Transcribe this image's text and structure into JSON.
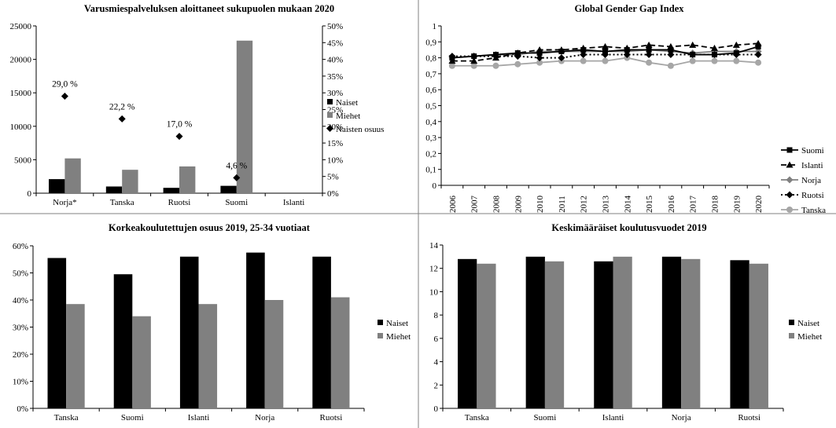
{
  "colors": {
    "naiset": "#000000",
    "miehet": "#808080",
    "norja": "#808080",
    "tanska": "#a6a6a6"
  },
  "chart_data": [
    {
      "type": "bar",
      "title": "Varusmiespalveluksen  aloittaneet sukupuolen mukaan 2020",
      "categories": [
        "Norja*",
        "Tanska",
        "Ruotsi",
        "Suomi",
        "Islanti"
      ],
      "ylim": [
        0,
        25000
      ],
      "y_ticks": [
        "0",
        "5000",
        "10000",
        "15000",
        "20000",
        "25000"
      ],
      "y2lim": [
        0,
        50
      ],
      "y2_ticks": [
        "0%",
        "5%",
        "10%",
        "15%",
        "20%",
        "25%",
        "30%",
        "35%",
        "40%",
        "45%",
        "50%"
      ],
      "series": [
        {
          "name": "Naiset",
          "values": [
            2100,
            1000,
            800,
            1100,
            0
          ]
        },
        {
          "name": "Miehet",
          "values": [
            5200,
            3500,
            4000,
            22800,
            0
          ]
        },
        {
          "name": "Naisten osuus",
          "axis": "secondary",
          "values": [
            29.0,
            22.2,
            17.0,
            4.6,
            null
          ],
          "labels": [
            "29,0 %",
            "22,2 %",
            "17,0 %",
            "4,6 %",
            ""
          ]
        }
      ],
      "legend": "right"
    },
    {
      "type": "line",
      "title": "Global Gender Gap Index",
      "x": [
        "2006",
        "2007",
        "2008",
        "2009",
        "2010",
        "2011",
        "2012",
        "2013",
        "2014",
        "2015",
        "2016",
        "2017",
        "2018",
        "2019",
        "2020"
      ],
      "ylim": [
        0,
        1
      ],
      "y_ticks": [
        "0",
        "0,1",
        "0,2",
        "0,3",
        "0,4",
        "0,5",
        "0,6",
        "0,7",
        "0,8",
        "0,9",
        "1"
      ],
      "series": [
        {
          "name": "Suomi",
          "values": [
            0.8,
            0.81,
            0.82,
            0.83,
            0.83,
            0.84,
            0.85,
            0.84,
            0.85,
            0.85,
            0.85,
            0.82,
            0.82,
            0.83,
            0.87
          ]
        },
        {
          "name": "Islanti",
          "values": [
            0.78,
            0.78,
            0.8,
            0.83,
            0.85,
            0.85,
            0.86,
            0.87,
            0.86,
            0.88,
            0.87,
            0.88,
            0.86,
            0.88,
            0.89
          ]
        },
        {
          "name": "Norja",
          "values": [
            0.8,
            0.81,
            0.82,
            0.82,
            0.84,
            0.84,
            0.84,
            0.84,
            0.84,
            0.85,
            0.84,
            0.83,
            0.84,
            0.84,
            0.84
          ]
        },
        {
          "name": "Ruotsi",
          "values": [
            0.81,
            0.81,
            0.81,
            0.81,
            0.8,
            0.8,
            0.82,
            0.82,
            0.82,
            0.82,
            0.82,
            0.82,
            0.82,
            0.82,
            0.82
          ]
        },
        {
          "name": "Tanska",
          "values": [
            0.75,
            0.75,
            0.75,
            0.76,
            0.77,
            0.78,
            0.78,
            0.78,
            0.8,
            0.77,
            0.75,
            0.78,
            0.78,
            0.78,
            0.77
          ]
        }
      ],
      "legend": "right"
    },
    {
      "type": "bar",
      "title": "Korkeakoulutettujen osuus  2019, 25-34 vuotiaat",
      "categories": [
        "Tanska",
        "Suomi",
        "Islanti",
        "Norja",
        "Ruotsi"
      ],
      "ylim": [
        0,
        60
      ],
      "y_ticks": [
        "0%",
        "10%",
        "20%",
        "30%",
        "40%",
        "50%",
        "60%"
      ],
      "series": [
        {
          "name": "Naiset",
          "values": [
            55.5,
            49.5,
            56,
            57.5,
            56
          ]
        },
        {
          "name": "Miehet",
          "values": [
            38.5,
            34,
            38.5,
            40,
            41
          ]
        }
      ],
      "legend": "right"
    },
    {
      "type": "bar",
      "title": "Keskimääräiset  koulutusvuodet 2019",
      "categories": [
        "Tanska",
        "Suomi",
        "Islanti",
        "Norja",
        "Ruotsi"
      ],
      "ylim": [
        0,
        14
      ],
      "y_ticks": [
        "0",
        "2",
        "4",
        "6",
        "8",
        "10",
        "12",
        "14"
      ],
      "series": [
        {
          "name": "Naiset",
          "values": [
            12.8,
            13.0,
            12.6,
            13.0,
            12.7
          ]
        },
        {
          "name": "Miehet",
          "values": [
            12.4,
            12.6,
            13.0,
            12.8,
            12.4
          ]
        }
      ],
      "legend": "right"
    }
  ]
}
